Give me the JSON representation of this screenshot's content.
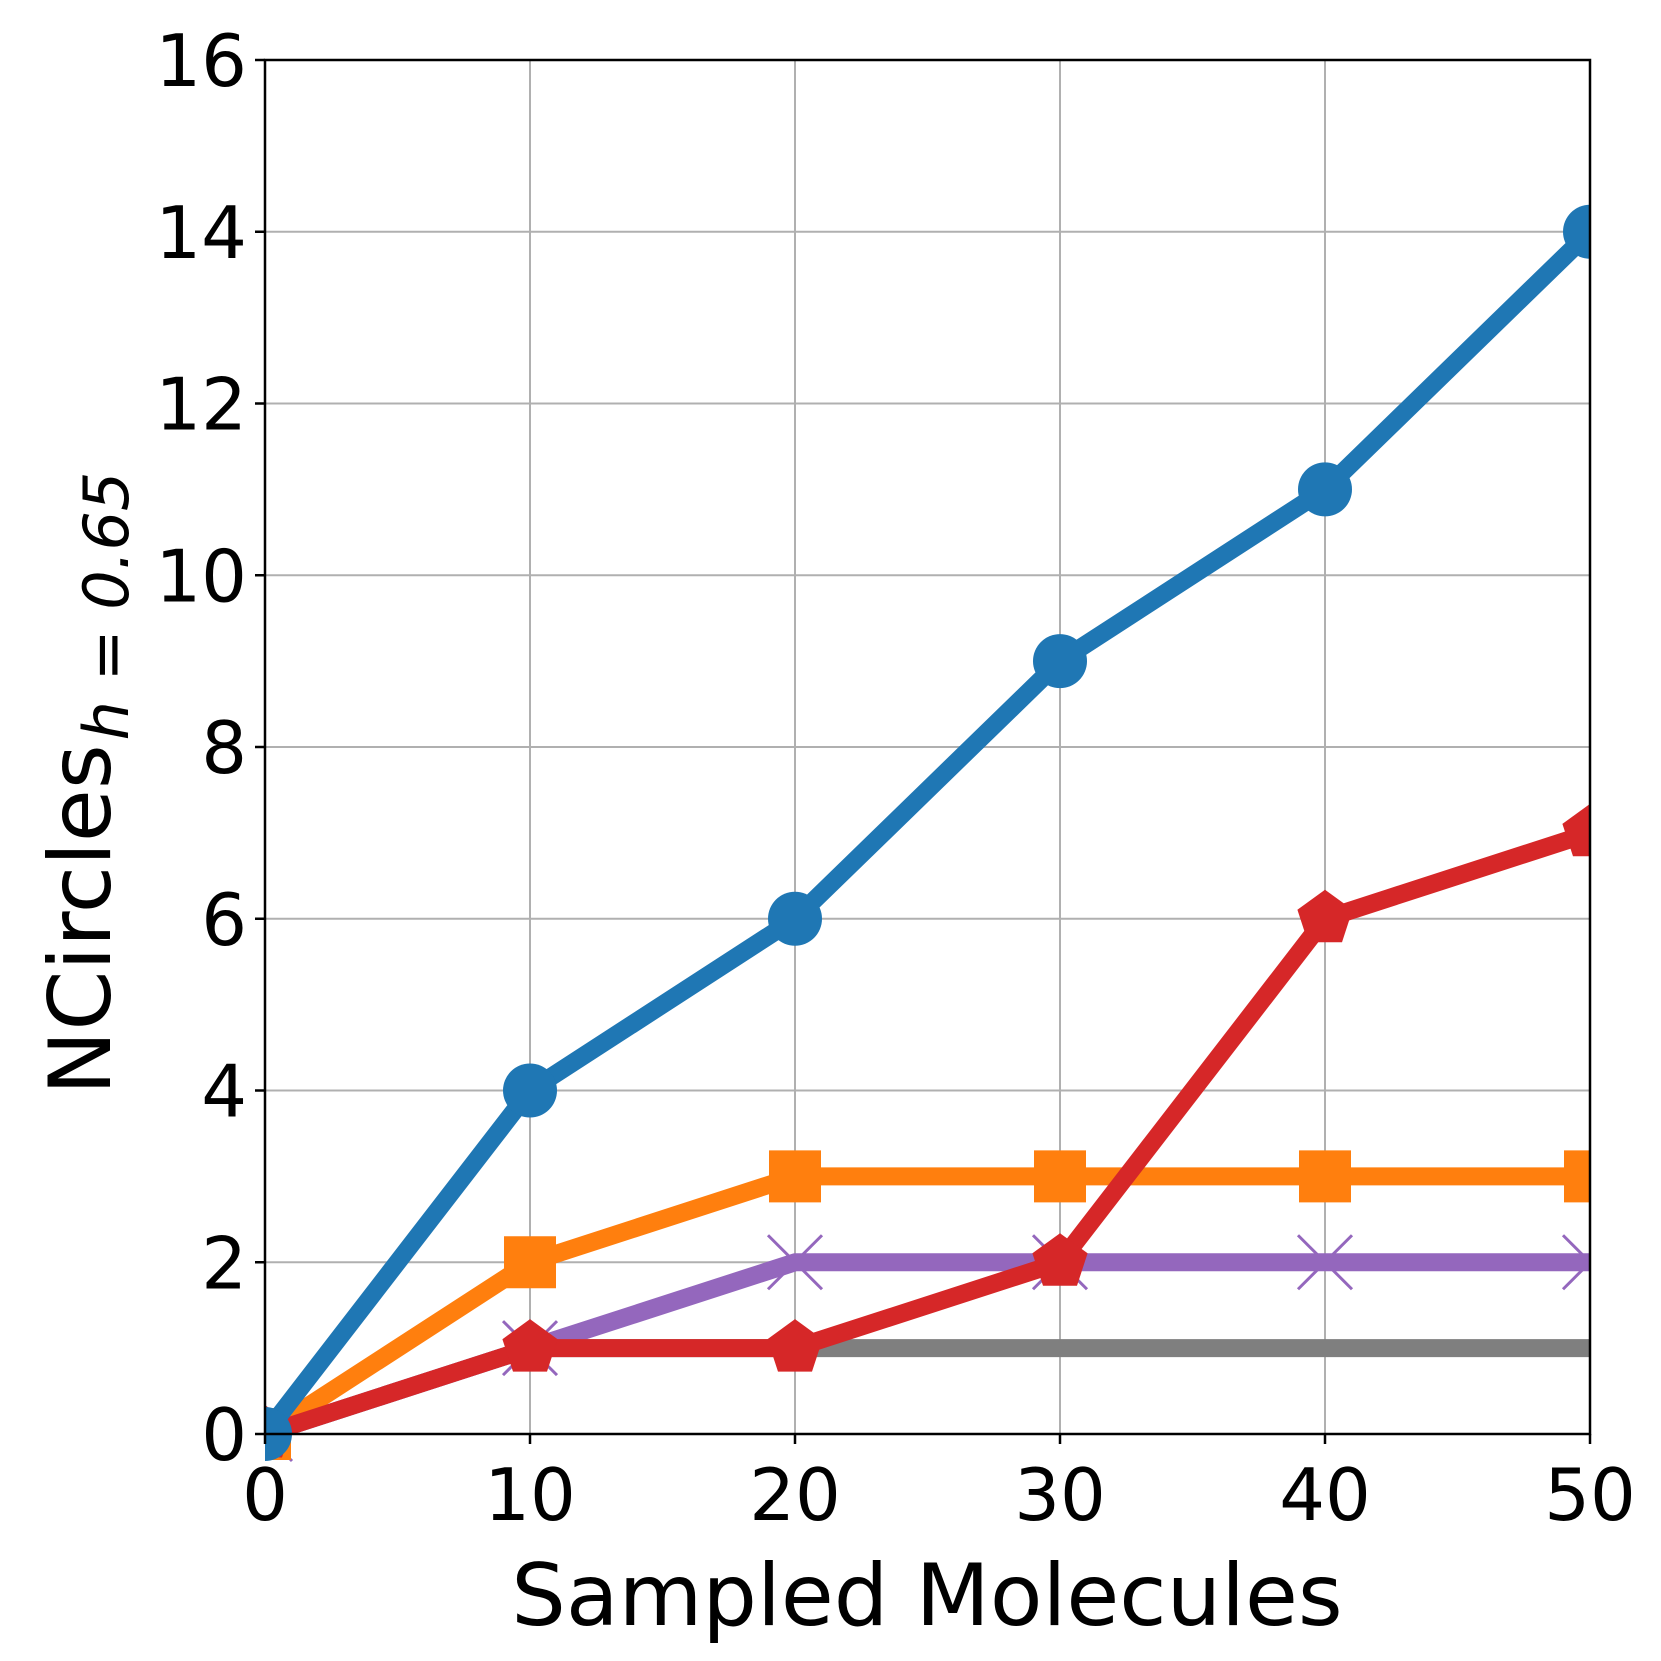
{
  "chart_data": {
    "type": "line",
    "xlabel": "Sampled Molecules",
    "ylabel": "NCircles",
    "ylabel_subscript": "h = 0.65",
    "xlim": [
      0,
      50
    ],
    "ylim": [
      0,
      16
    ],
    "xticks": [
      "0",
      "10",
      "20",
      "30",
      "40",
      "50"
    ],
    "yticks": [
      "0",
      "2",
      "4",
      "6",
      "8",
      "10",
      "12",
      "14",
      "16"
    ],
    "grid": true,
    "x": [
      0,
      10,
      20,
      30,
      40,
      50
    ],
    "series": [
      {
        "values": [
          0,
          1,
          1,
          1,
          1,
          1
        ],
        "color": "#7f7f7f",
        "marker": "none"
      },
      {
        "values": [
          0,
          1,
          2,
          2,
          2,
          2
        ],
        "color": "#9467bd",
        "marker": "x"
      },
      {
        "values": [
          0,
          2,
          3,
          3,
          3,
          3
        ],
        "color": "#ff7f0e",
        "marker": "square"
      },
      {
        "values": [
          0,
          1,
          1,
          2,
          6,
          7
        ],
        "color": "#d62728",
        "marker": "pentagon"
      },
      {
        "values": [
          0,
          4,
          6,
          9,
          11,
          14
        ],
        "color": "#1f77b4",
        "marker": "circle"
      }
    ]
  }
}
